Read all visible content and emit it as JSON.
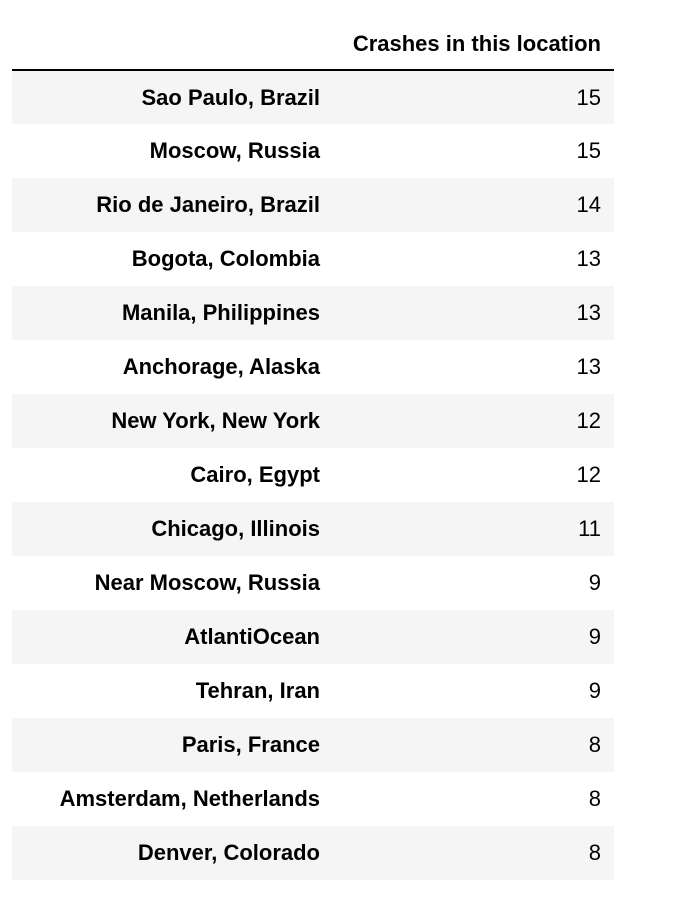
{
  "table": {
    "columns": [
      "",
      "Crashes in this location"
    ],
    "rows": [
      {
        "location": "Sao Paulo, Brazil",
        "crashes": "15"
      },
      {
        "location": "Moscow, Russia",
        "crashes": "15"
      },
      {
        "location": "Rio de Janeiro, Brazil",
        "crashes": "14"
      },
      {
        "location": "Bogota, Colombia",
        "crashes": "13"
      },
      {
        "location": "Manila, Philippines",
        "crashes": "13"
      },
      {
        "location": "Anchorage, Alaska",
        "crashes": "13"
      },
      {
        "location": "New York, New York",
        "crashes": "12"
      },
      {
        "location": "Cairo, Egypt",
        "crashes": "12"
      },
      {
        "location": "Chicago, Illinois",
        "crashes": "11"
      },
      {
        "location": "Near Moscow, Russia",
        "crashes": "9"
      },
      {
        "location": "AtlantiOcean",
        "crashes": "9"
      },
      {
        "location": "Tehran, Iran",
        "crashes": "9"
      },
      {
        "location": "Paris, France",
        "crashes": "8"
      },
      {
        "location": "Amsterdam, Netherlands",
        "crashes": "8"
      },
      {
        "location": "Denver, Colorado",
        "crashes": "8"
      }
    ]
  }
}
